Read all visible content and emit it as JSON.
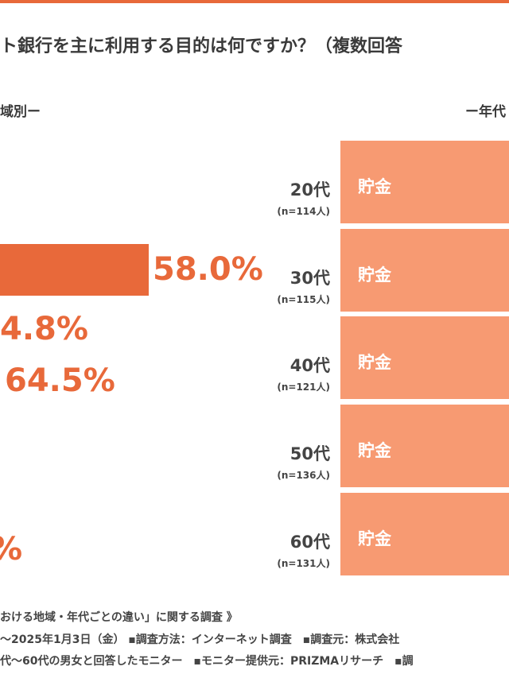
{
  "header": {
    "title": "ト銀行を主に利用する目的は何ですか？（複数回答"
  },
  "left": {
    "heading": "域別ー",
    "values": [
      "58.0%",
      "4.8%",
      "64.5%",
      "%"
    ]
  },
  "right": {
    "heading": "ー年代",
    "rows": [
      {
        "age": "20代",
        "n": "(n=114人)",
        "label": "貯金"
      },
      {
        "age": "30代",
        "n": "(n=115人)",
        "label": "貯金"
      },
      {
        "age": "40代",
        "n": "(n=121人)",
        "label": "貯金"
      },
      {
        "age": "50代",
        "n": "(n=136人)",
        "label": "貯金"
      },
      {
        "age": "60代",
        "n": "(n=131人)",
        "label": "貯金"
      }
    ]
  },
  "notes": [
    "おける地域・年代ごとの違い」に関する調査 》",
    "～2025年1月3日（金） ▪調査方法：インターネット調査　▪調査元：株式会社",
    "代～60代の男女と回答したモニター　▪モニター提供元：PRIZMAリサーチ　▪調"
  ]
}
